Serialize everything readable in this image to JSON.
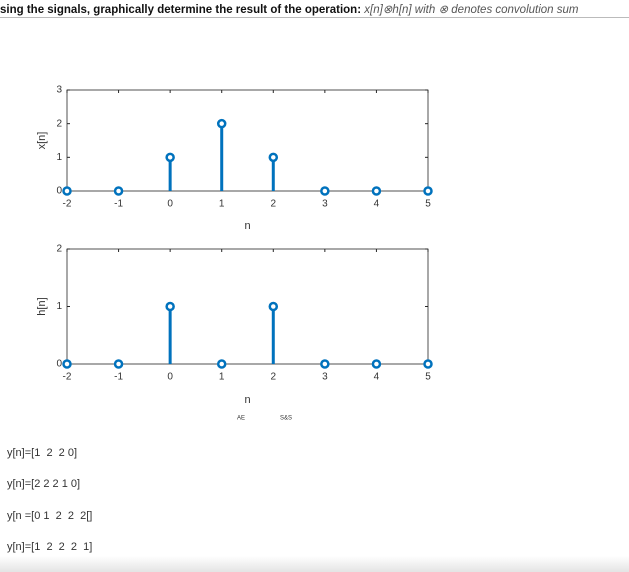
{
  "question": {
    "text": "sing the signals, graphically determine the result of the operation:",
    "expression": "x[n]⊗h[n] with ⊗ denotes convolution sum"
  },
  "chart_data": [
    {
      "type": "stem",
      "x": [
        -2,
        -1,
        0,
        1,
        2,
        3,
        4,
        5
      ],
      "values": [
        0,
        0,
        1,
        2,
        1,
        0,
        0,
        0
      ],
      "color": "#0072bd",
      "xlim": [
        -2,
        5
      ],
      "ylim": [
        0,
        3
      ],
      "xticks": [
        -2,
        -1,
        0,
        1,
        2,
        3,
        4,
        5
      ],
      "yticks": [
        0,
        1,
        2,
        3
      ],
      "xlabel": "n",
      "ylabel": "x[n]"
    },
    {
      "type": "stem",
      "x": [
        -2,
        -1,
        0,
        1,
        2,
        3,
        4,
        5
      ],
      "values": [
        0,
        0,
        1,
        0,
        1,
        0,
        0,
        0
      ],
      "color": "#0072bd",
      "xlim": [
        -2,
        5
      ],
      "ylim": [
        0,
        2
      ],
      "xticks": [
        -2,
        -1,
        0,
        1,
        2,
        3,
        4,
        5
      ],
      "yticks": [
        0,
        1,
        2
      ],
      "xlabel": "n",
      "ylabel": "h[n]"
    }
  ],
  "watermarks": [
    "AE",
    "S&S"
  ],
  "options": [
    "y[n]=[1  2  2 0]",
    "y[n]=[2 2 2 1 0]",
    "y[n =[0 1  2  2  2[]",
    "y[n]=[1  2  2  2  1]"
  ]
}
